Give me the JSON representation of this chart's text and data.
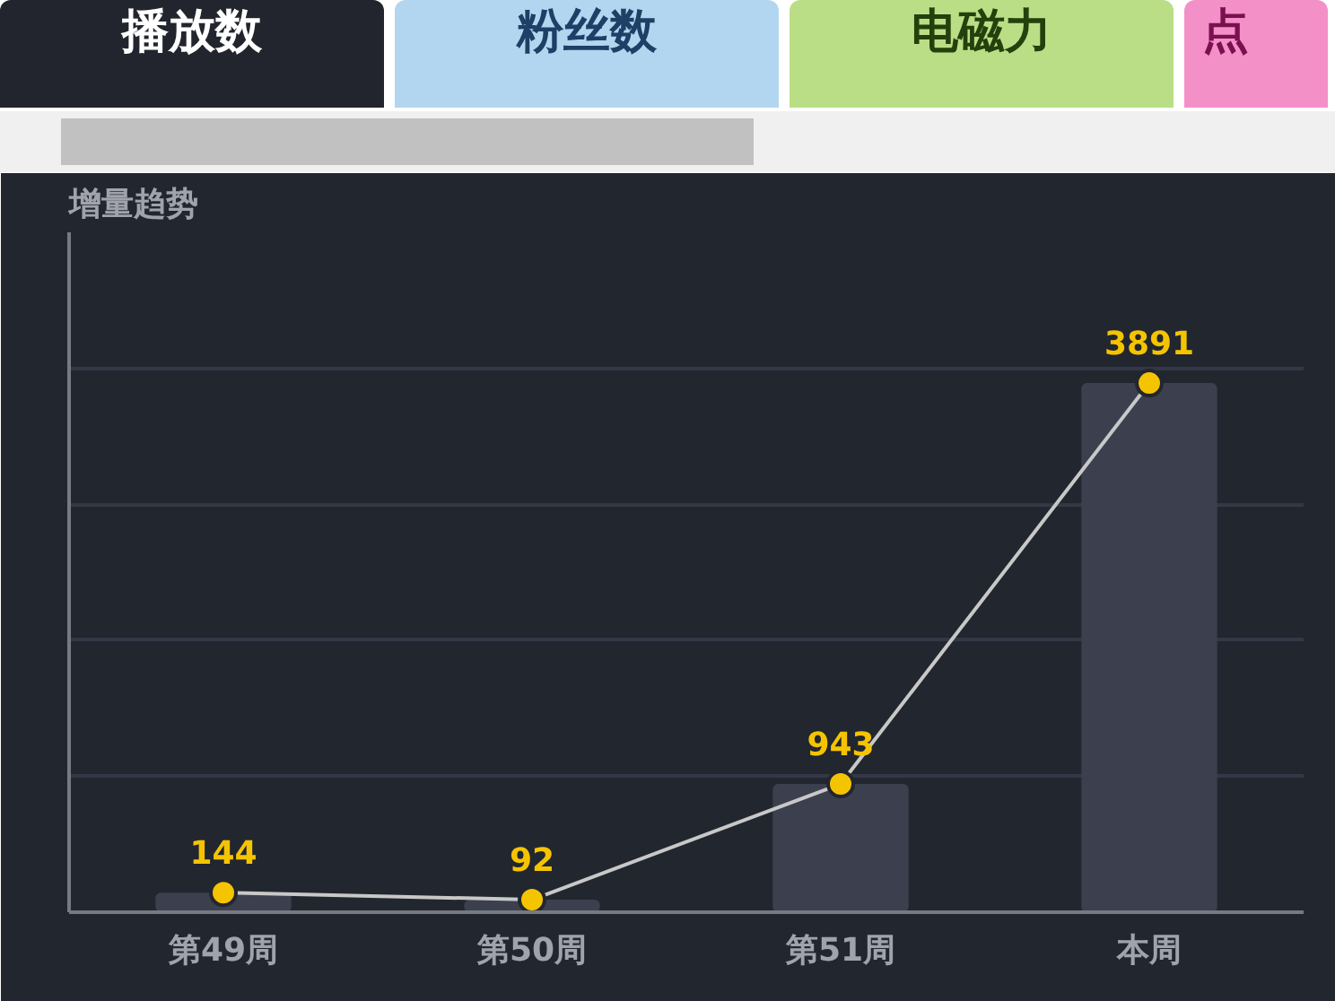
{
  "chart_data": {
    "type": "bar",
    "title": "增量趋势",
    "annotations": [
      "播放数",
      "粉丝数",
      "电磁力",
      "点"
    ],
    "categories": [
      "第49周",
      "第50周",
      "第51周",
      "本周"
    ],
    "series": [
      {
        "color": "#3c404e",
        "values": [
          144,
          92,
          943,
          3891
        ]
      },
      {
        "type": "line",
        "color": "#f5c400",
        "marker": "circle",
        "values": [
          144,
          92,
          943,
          3891
        ],
        "value_labels": [
          "144",
          "92",
          "943",
          "3891"
        ]
      }
    ],
    "ylim": [
      0,
      5000
    ],
    "yticks": [
      {
        "value": 0,
        "label": null
      },
      {
        "value": 1000,
        "label": null
      },
      {
        "value": 2000,
        "label": null
      },
      {
        "value": 3000,
        "label": null
      },
      {
        "value": 4000,
        "label": null
      },
      {
        "value": 5000,
        "label": null
      }
    ],
    "tick_labels": "x",
    "grid": "y"
  }
}
